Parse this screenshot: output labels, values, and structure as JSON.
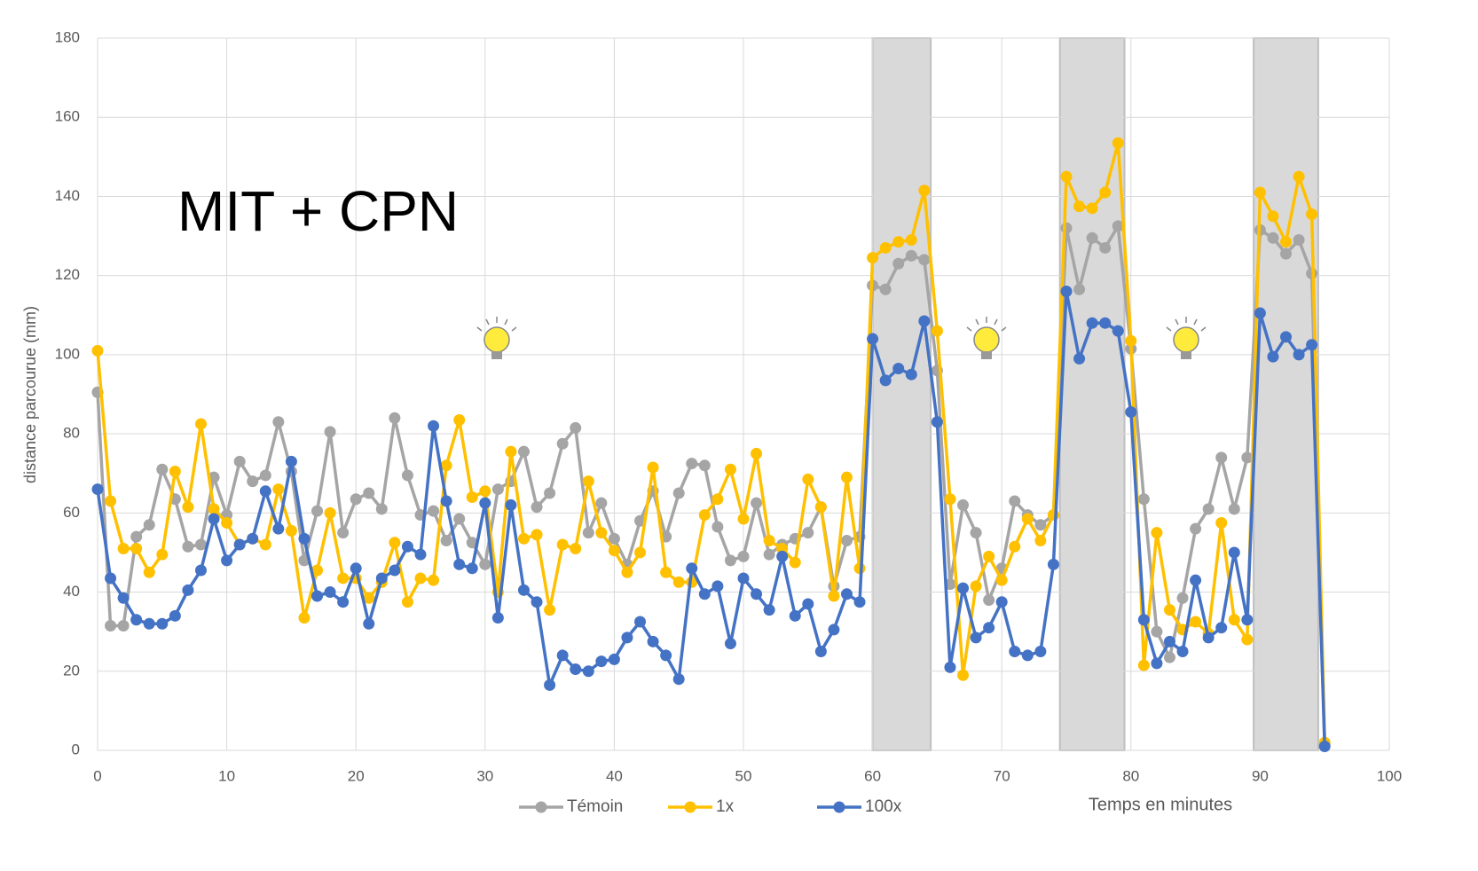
{
  "chart_data": {
    "type": "line",
    "annotation": "MIT + CPN",
    "y_label": "distance parcourue (mm)",
    "x_label": "Temps en minutes",
    "xlim": [
      0,
      100
    ],
    "xticks": [
      0,
      10,
      20,
      30,
      40,
      50,
      60,
      70,
      80,
      90,
      100
    ],
    "ylim": [
      0,
      180
    ],
    "yticks": [
      0,
      20,
      40,
      60,
      80,
      100,
      120,
      140,
      160,
      180
    ],
    "grid": true,
    "legend": "bottom",
    "shaded_regions": [
      [
        60,
        64.5
      ],
      [
        74.5,
        79.5
      ],
      [
        89.5,
        94.5
      ]
    ],
    "x": [
      0,
      1,
      2,
      3,
      4,
      5,
      6,
      7,
      8,
      9,
      10,
      11,
      12,
      13,
      14,
      15,
      16,
      17,
      18,
      19,
      20,
      21,
      22,
      23,
      24,
      25,
      26,
      27,
      28,
      29,
      30,
      31,
      32,
      33,
      34,
      35,
      36,
      37,
      38,
      39,
      40,
      41,
      42,
      43,
      44,
      45,
      46,
      47,
      48,
      49,
      50,
      51,
      52,
      53,
      54,
      55,
      56,
      57,
      58,
      59,
      60,
      61,
      62,
      63,
      64,
      65,
      66,
      67,
      68,
      69,
      70,
      71,
      72,
      73,
      74,
      75,
      76,
      77,
      78,
      79,
      80,
      81,
      82,
      83,
      84,
      85,
      86,
      87,
      88,
      89,
      90,
      91,
      92,
      93,
      94,
      95
    ],
    "series": [
      {
        "name": "Témoin",
        "color": "#a5a5a5",
        "values": [
          90.5,
          31.5,
          31.5,
          54,
          57,
          71,
          63.5,
          51.5,
          52,
          69,
          59.5,
          73,
          68,
          69.5,
          83,
          70.5,
          48,
          60.5,
          80.5,
          55,
          63.5,
          65,
          61,
          84,
          69.5,
          59.5,
          60.5,
          53,
          58.5,
          52.5,
          47,
          66,
          68,
          75.5,
          61.5,
          65,
          77.5,
          81.5,
          55,
          62.5,
          53.5,
          47,
          58,
          65.5,
          54,
          65,
          72.5,
          72,
          56.5,
          48,
          49,
          62.5,
          49.5,
          52,
          53.5,
          55,
          61.5,
          41.5,
          53,
          54,
          117.5,
          116.5,
          123,
          125,
          124,
          96,
          42,
          62,
          55,
          38,
          46,
          63,
          59.5,
          57,
          59.5,
          132,
          116.5,
          129.5,
          127,
          132.5,
          101.5,
          63.5,
          30,
          23.5,
          38.5,
          56,
          61,
          74,
          61,
          74,
          131.5,
          129.5,
          125.5,
          129,
          120.5,
          1.5
        ]
      },
      {
        "name": "1x",
        "color": "#ffc000",
        "values": [
          101,
          63,
          51,
          51,
          45,
          49.5,
          70.5,
          61.5,
          82.5,
          61,
          57.5,
          52,
          53.5,
          52,
          66,
          55.5,
          33.5,
          45.5,
          60,
          43.5,
          43.5,
          38.5,
          42.5,
          52.5,
          37.5,
          43.5,
          43,
          72,
          83.5,
          64,
          65.5,
          40,
          75.5,
          53.5,
          54.5,
          35.5,
          52,
          51,
          68,
          55,
          50.5,
          45,
          50,
          71.5,
          45,
          42.5,
          42.5,
          59.5,
          63.5,
          71,
          58.5,
          75,
          53,
          51,
          47.5,
          68.5,
          61.5,
          39,
          69,
          46,
          124.5,
          127,
          128.5,
          129,
          141.5,
          106,
          63.5,
          19,
          41.5,
          49,
          43,
          51.5,
          58.5,
          53,
          59.5,
          145,
          137.5,
          137,
          141,
          153.5,
          103.5,
          21.5,
          55,
          35.5,
          30.5,
          32.5,
          29.5,
          57.5,
          33,
          28,
          141,
          135,
          128.5,
          145,
          135.5,
          2
        ]
      },
      {
        "name": "100x",
        "color": "#4472c4",
        "values": [
          66,
          43.5,
          38.5,
          33,
          32,
          32,
          34,
          40.5,
          45.5,
          58.5,
          48,
          52,
          53.5,
          65.5,
          56,
          73,
          53.5,
          39,
          40,
          37.5,
          46,
          32,
          43.5,
          45.5,
          51.5,
          49.5,
          82,
          63,
          47,
          46,
          62.5,
          33.5,
          62,
          40.5,
          37.5,
          16.5,
          24,
          20.5,
          20,
          22.5,
          23,
          28.5,
          32.5,
          27.5,
          24,
          18,
          46,
          39.5,
          41.5,
          27,
          43.5,
          39.5,
          35.5,
          49,
          34,
          37,
          25,
          30.5,
          39.5,
          37.5,
          104,
          93.5,
          96.5,
          95,
          108.5,
          83,
          21,
          41,
          28.5,
          31,
          37.5,
          25,
          24,
          25,
          47,
          116,
          99,
          108,
          108,
          106,
          85.5,
          33,
          22,
          27.5,
          25,
          43,
          28.5,
          31,
          50,
          33,
          110.5,
          99.5,
          104.5,
          100,
          102.5,
          1
        ]
      }
    ]
  }
}
